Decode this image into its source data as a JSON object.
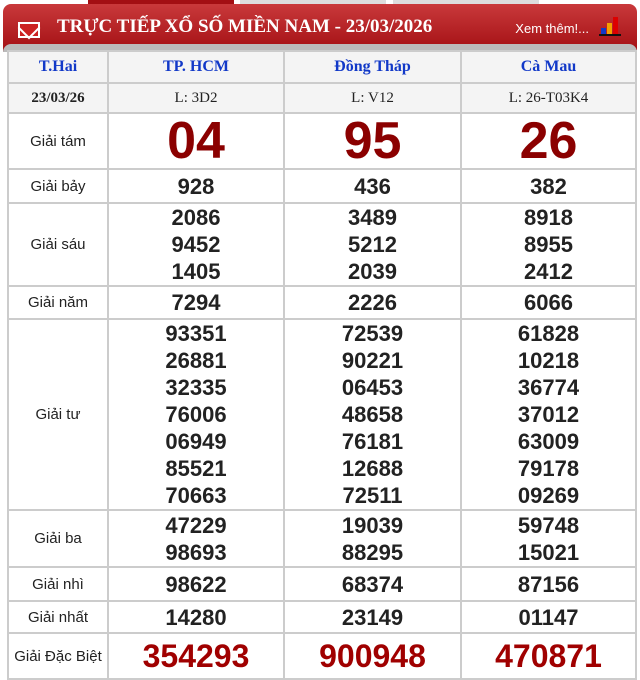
{
  "header": {
    "title": "TRỰC TIẾP XỔ SỐ MIỀN NAM - 23/03/2026",
    "more_link": "Xem thêm!...",
    "colors": {
      "header_red": "#b8191d",
      "label_blue": "#1239c8",
      "highlight_red": "#8b0000"
    }
  },
  "table": {
    "day": "T.Hai",
    "date": "23/03/26",
    "provinces": [
      {
        "name": "TP. HCM",
        "code": "L: 3D2"
      },
      {
        "name": "Đồng Tháp",
        "code": "L: V12"
      },
      {
        "name": "Cà Mau",
        "code": "L: 26-T03K4"
      }
    ],
    "prizes": [
      {
        "label": "Giải tám",
        "style": "big",
        "values": [
          [
            "04"
          ],
          [
            "95"
          ],
          [
            "26"
          ]
        ]
      },
      {
        "label": "Giải bảy",
        "values": [
          [
            "928"
          ],
          [
            "436"
          ],
          [
            "382"
          ]
        ]
      },
      {
        "label": "Giải sáu",
        "values": [
          [
            "2086",
            "9452",
            "1405"
          ],
          [
            "3489",
            "5212",
            "2039"
          ],
          [
            "8918",
            "8955",
            "2412"
          ]
        ]
      },
      {
        "label": "Giải năm",
        "values": [
          [
            "7294"
          ],
          [
            "2226"
          ],
          [
            "6066"
          ]
        ]
      },
      {
        "label": "Giải tư",
        "values": [
          [
            "93351",
            "26881",
            "32335",
            "76006",
            "06949",
            "85521",
            "70663"
          ],
          [
            "72539",
            "90221",
            "06453",
            "48658",
            "76181",
            "12688",
            "72511"
          ],
          [
            "61828",
            "10218",
            "36774",
            "37012",
            "63009",
            "79178",
            "09269"
          ]
        ]
      },
      {
        "label": "Giải ba",
        "values": [
          [
            "47229",
            "98693"
          ],
          [
            "19039",
            "88295"
          ],
          [
            "59748",
            "15021"
          ]
        ]
      },
      {
        "label": "Giải nhì",
        "values": [
          [
            "98622"
          ],
          [
            "68374"
          ],
          [
            "87156"
          ]
        ]
      },
      {
        "label": "Giải nhất",
        "values": [
          [
            "14280"
          ],
          [
            "23149"
          ],
          [
            "01147"
          ]
        ]
      },
      {
        "label": "Giải Đặc Biệt",
        "style": "db",
        "values": [
          [
            "354293"
          ],
          [
            "900948"
          ],
          [
            "470871"
          ]
        ]
      }
    ]
  }
}
